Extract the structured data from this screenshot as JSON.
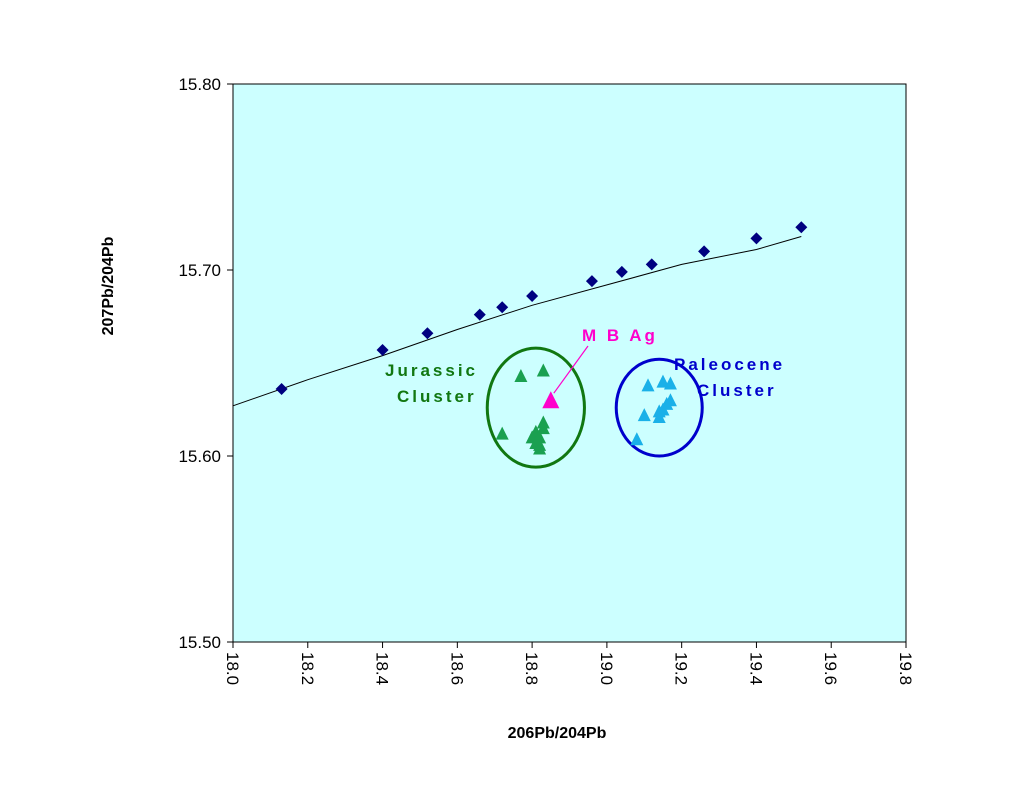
{
  "chart_data": {
    "type": "scatter",
    "title": "",
    "xlabel": "206Pb/204Pb",
    "ylabel": "207Pb/204Pb",
    "xlim": [
      18.0,
      19.8
    ],
    "ylim": [
      15.5,
      15.8
    ],
    "x_ticks": [
      "18.0",
      "18.2",
      "18.4",
      "18.6",
      "18.8",
      "19.0",
      "19.2",
      "19.4",
      "19.6",
      "19.8"
    ],
    "y_ticks": [
      "15.50",
      "15.60",
      "15.70",
      "15.80"
    ],
    "x_tick_values": [
      18.0,
      18.2,
      18.4,
      18.6,
      18.8,
      19.0,
      19.2,
      19.4,
      19.6,
      19.8
    ],
    "y_tick_values": [
      15.5,
      15.6,
      15.7,
      15.8
    ],
    "plot_background": "#ccffff",
    "grid": false,
    "legend": "none",
    "series": [
      {
        "marker": "diamond",
        "color": "#000080",
        "points": [
          [
            18.13,
            15.636
          ],
          [
            18.4,
            15.657
          ],
          [
            18.52,
            15.666
          ],
          [
            18.66,
            15.676
          ],
          [
            18.72,
            15.68
          ],
          [
            18.8,
            15.686
          ],
          [
            18.96,
            15.694
          ],
          [
            19.04,
            15.699
          ],
          [
            19.12,
            15.703
          ],
          [
            19.26,
            15.71
          ],
          [
            19.4,
            15.717
          ],
          [
            19.52,
            15.723
          ]
        ]
      },
      {
        "marker": "triangle",
        "color": "#1aa050",
        "points": [
          [
            18.72,
            15.612
          ],
          [
            18.77,
            15.643
          ],
          [
            18.83,
            15.646
          ],
          [
            18.8,
            15.61
          ],
          [
            18.81,
            15.613
          ],
          [
            18.81,
            15.607
          ],
          [
            18.82,
            15.606
          ],
          [
            18.82,
            15.61
          ],
          [
            18.83,
            15.615
          ],
          [
            18.83,
            15.618
          ],
          [
            18.82,
            15.604
          ]
        ]
      },
      {
        "marker": "triangle",
        "color": "#1ab0e8",
        "points": [
          [
            19.08,
            15.609
          ],
          [
            19.1,
            15.622
          ],
          [
            19.11,
            15.638
          ],
          [
            19.14,
            15.621
          ],
          [
            19.14,
            15.624
          ],
          [
            19.15,
            15.64
          ],
          [
            19.15,
            15.625
          ],
          [
            19.16,
            15.628
          ],
          [
            19.17,
            15.639
          ],
          [
            19.17,
            15.63
          ]
        ]
      },
      {
        "marker": "triangle",
        "color": "#ff00cc",
        "size": "large",
        "points": [
          [
            18.85,
            15.63
          ]
        ]
      }
    ],
    "trend_line": {
      "color": "#000000",
      "points": [
        [
          18.0,
          15.627
        ],
        [
          18.2,
          15.641
        ],
        [
          18.4,
          15.654
        ],
        [
          18.6,
          15.668
        ],
        [
          18.8,
          15.681
        ],
        [
          19.0,
          15.692
        ],
        [
          19.2,
          15.703
        ],
        [
          19.4,
          15.711
        ],
        [
          19.52,
          15.718
        ]
      ]
    },
    "clusters": [
      {
        "center": [
          18.81,
          15.626
        ],
        "rx": 0.13,
        "ry": 0.032,
        "color": "#117711"
      },
      {
        "center": [
          19.14,
          15.626
        ],
        "rx": 0.115,
        "ry": 0.026,
        "color": "#0000cc"
      }
    ],
    "annotations": [
      {
        "lines": [
          "Jurassic",
          "Cluster"
        ],
        "color": "#117711"
      },
      {
        "lines": [
          "Paleocene",
          "Cluster"
        ],
        "color": "#0000cc"
      },
      {
        "lines": [
          "M B Ag"
        ],
        "color": "#ff00cc",
        "arrow_to": [
          18.85,
          15.63
        ]
      }
    ]
  }
}
